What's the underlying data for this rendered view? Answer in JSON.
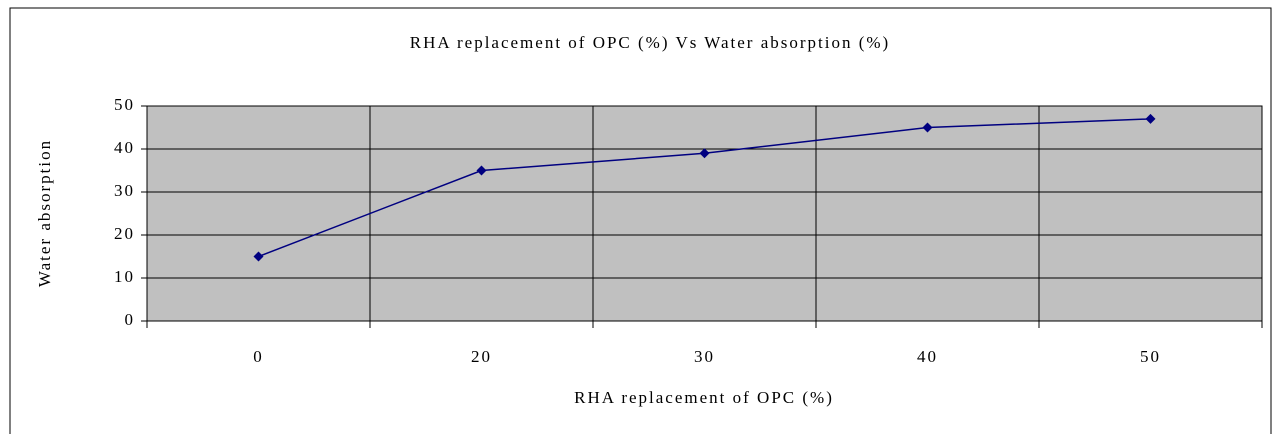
{
  "chart_data": {
    "type": "line",
    "title": "RHA replacement of OPC (%) Vs Water absorption (%)",
    "x_label": "RHA replacement of OPC (%)",
    "y_label": "Water absorption",
    "categories": [
      "0",
      "20",
      "30",
      "40",
      "50"
    ],
    "series": [
      {
        "name": "Water absorption",
        "color": "#000080",
        "values": [
          15,
          35,
          39,
          45,
          47
        ]
      }
    ],
    "ylim": [
      0,
      50
    ],
    "yticks": [
      0,
      10,
      20,
      30,
      40,
      50
    ],
    "grid": true,
    "legend": false,
    "plot_background": "#c0c0c0"
  }
}
